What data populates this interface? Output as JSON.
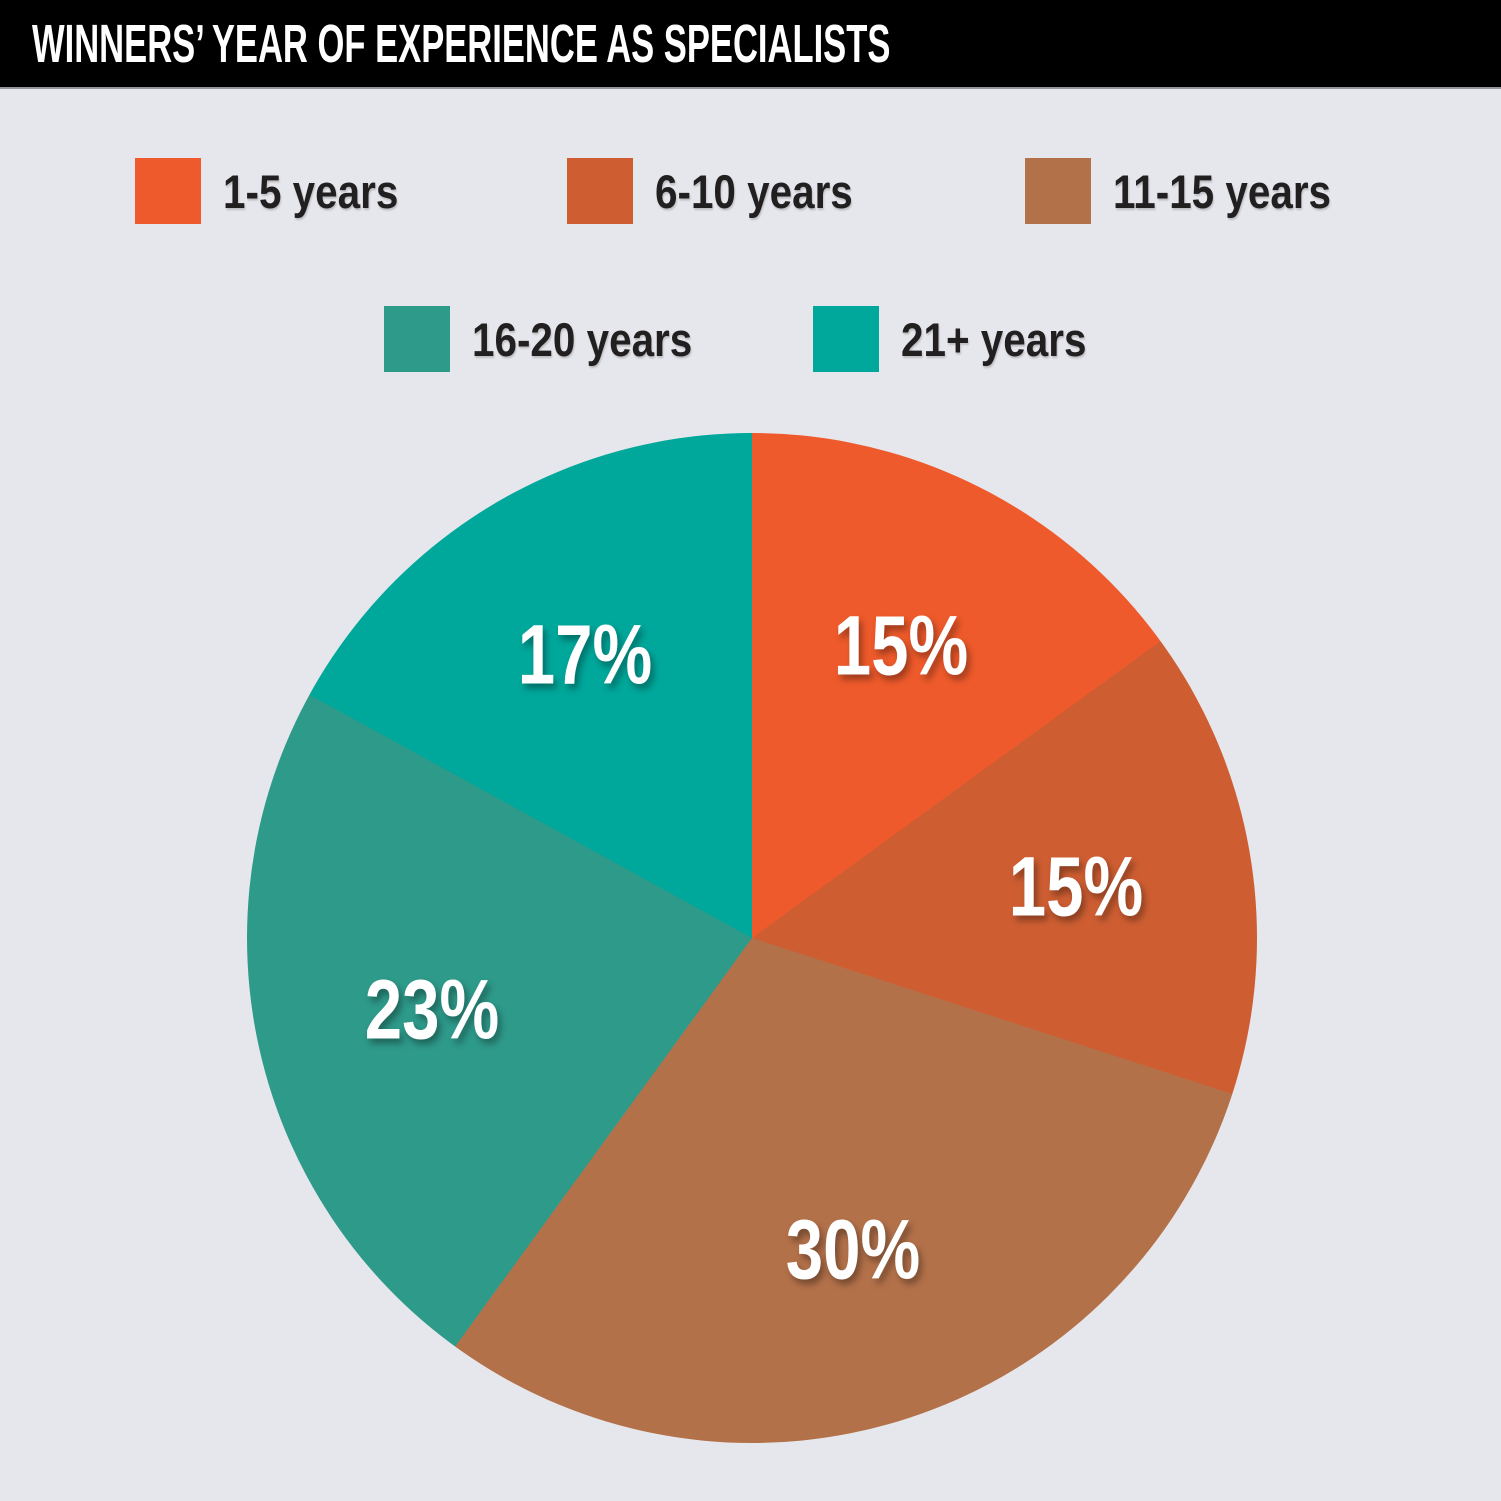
{
  "title": "WINNERS’ YEAR OF EXPERIENCE AS SPECIALISTS",
  "colors": {
    "background": "#E6E7EC",
    "title_bar": "#000000",
    "title_text": "#FFFFFF",
    "legend_text": "#221F20",
    "slice_label_text": "#FFFFFF"
  },
  "chart_data": {
    "type": "pie",
    "title": "WINNERS’ YEAR OF EXPERIENCE AS SPECIALISTS",
    "direction": "clockwise",
    "start_angle_deg": 0,
    "legend_position": "top",
    "grid": false,
    "legend_rows": [
      [
        0,
        1,
        2
      ],
      [
        3,
        4
      ]
    ],
    "slices": [
      {
        "label": "1-5 years",
        "value": 15,
        "value_label": "15%",
        "color": "#EE5A2B"
      },
      {
        "label": "6-10 years",
        "value": 15,
        "value_label": "15%",
        "color": "#CE5E32"
      },
      {
        "label": "11-15 years",
        "value": 30,
        "value_label": "30%",
        "color": "#B3714A"
      },
      {
        "label": "16-20 years",
        "value": 23,
        "value_label": "23%",
        "color": "#2E9A8A"
      },
      {
        "label": "21+ years",
        "value": 17,
        "value_label": "17%",
        "color": "#00A79B"
      }
    ]
  }
}
